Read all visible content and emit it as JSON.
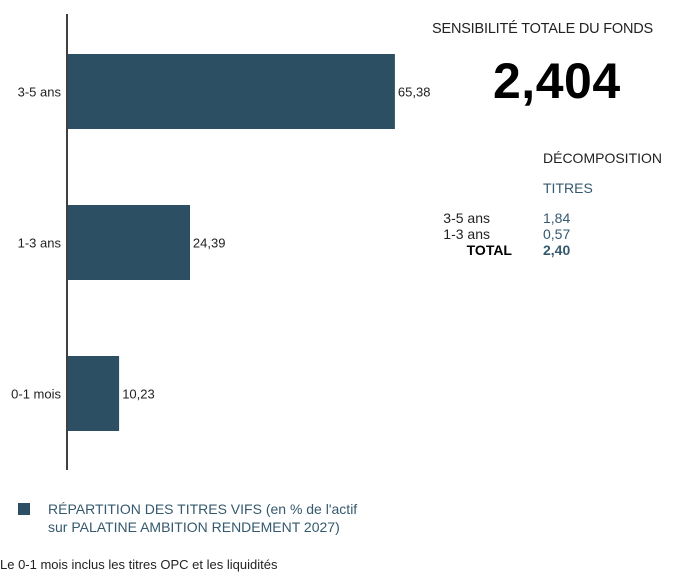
{
  "chart_data": {
    "type": "bar",
    "orientation": "horizontal",
    "categories": [
      "3-5 ans",
      "1-3 ans",
      "0-1 mois"
    ],
    "values": [
      65.38,
      24.39,
      10.23
    ],
    "value_labels": [
      "65,38",
      "24,39",
      "10,23"
    ],
    "color": "#2d4f63",
    "xlim": [
      0,
      100
    ],
    "grid": false
  },
  "sensitivity": {
    "title": "SENSIBILITÉ TOTALE DU FONDS",
    "value": "2,404"
  },
  "decomposition": {
    "title": "DÉCOMPOSITION",
    "column": "TITRES",
    "rows": [
      {
        "label": "3-5 ans",
        "value": "1,84"
      },
      {
        "label": "1-3 ans",
        "value": "0,57"
      }
    ],
    "total": {
      "label": "TOTAL",
      "value": "2,40"
    }
  },
  "legend": {
    "line1": "RÉPARTITION DES TITRES VIFS  (en % de l'actif",
    "line2": "sur PALATINE AMBITION RENDEMENT 2027)",
    "color": "#2d4f63"
  },
  "footnote": "Le 0-1 mois inclus les titres OPC et les liquidités"
}
